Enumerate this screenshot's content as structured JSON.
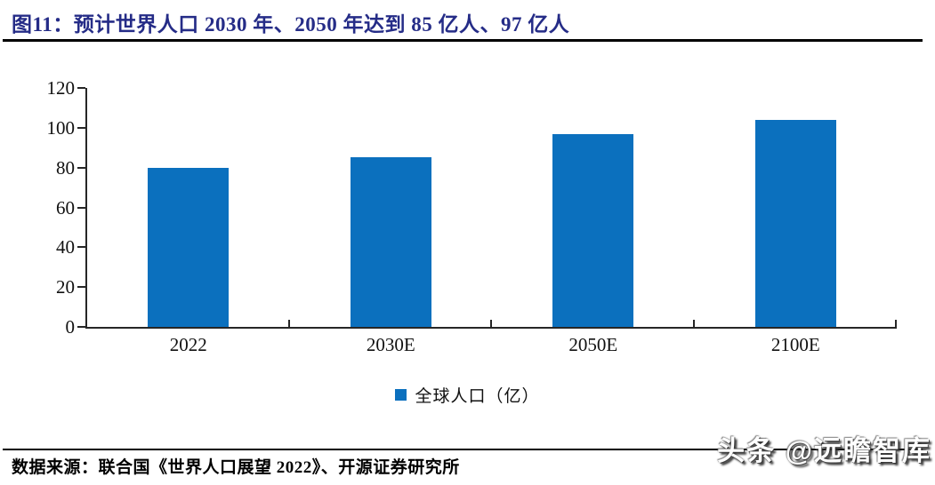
{
  "figure": {
    "title": "图11：预计世界人口 2030 年、2050 年达到 85 亿人、97 亿人",
    "source": "数据来源：联合国《世界人口展望 2022》、开源证券研究所",
    "watermark": "头条 @远瞻智库"
  },
  "colors": {
    "bar_blue": "#0B70BE",
    "title_navy": "#252C87",
    "axis_gray": "#262626",
    "rule_black": "#000000",
    "label_ink": "#111111"
  },
  "chart_data": {
    "type": "bar",
    "title": "图11：预计世界人口 2030 年、2050 年达到 85 亿人、97 亿人",
    "categories": [
      "2022",
      "2030E",
      "2050E",
      "2100E"
    ],
    "series": [
      {
        "name": "全球人口（亿）",
        "values": [
          80,
          85,
          97,
          104
        ]
      }
    ],
    "xlabel": "",
    "ylabel": "",
    "ylim": [
      0,
      120
    ],
    "yticks": [
      0,
      20,
      40,
      60,
      80,
      100,
      120
    ],
    "grid": false,
    "legend_position": "bottom",
    "bar_color": "#0B70BE"
  }
}
